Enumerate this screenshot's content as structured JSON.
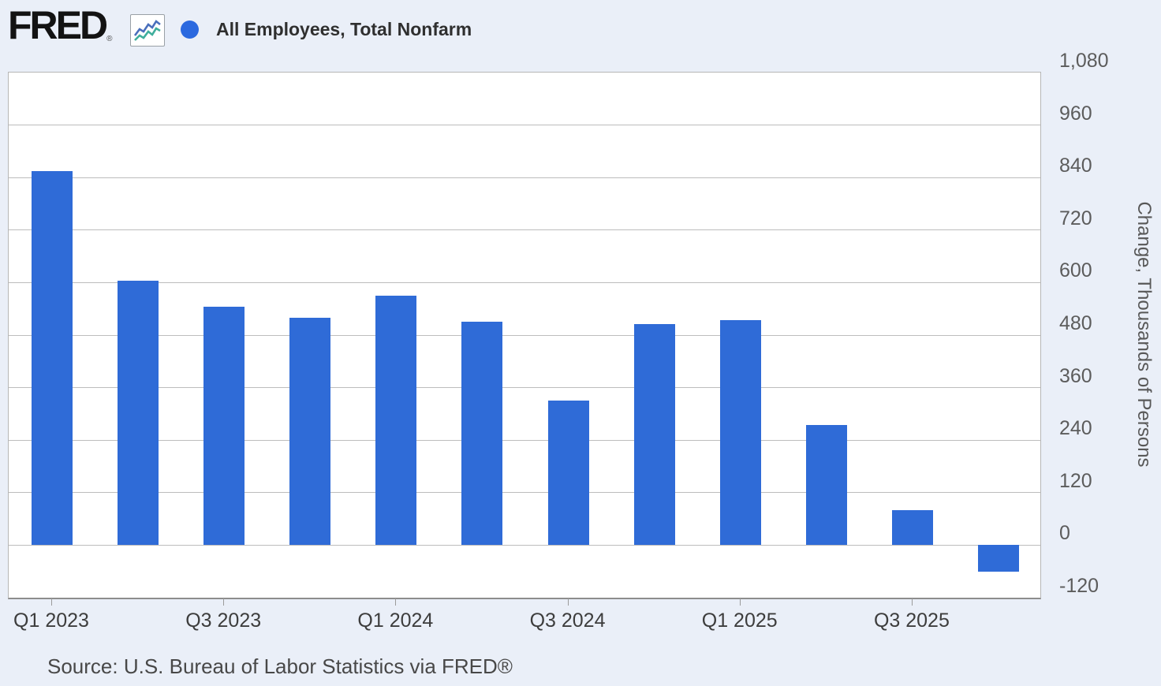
{
  "header": {
    "brand": "FRED",
    "brand_reg": "®",
    "legend_label": "All Employees, Total Nonfarm"
  },
  "chart_data": {
    "type": "bar",
    "title": "All Employees, Total Nonfarm",
    "categories": [
      "Q1 2023",
      "Q2 2023",
      "Q3 2023",
      "Q4 2023",
      "Q1 2024",
      "Q2 2024",
      "Q3 2024",
      "Q4 2024",
      "Q1 2025",
      "Q2 2025",
      "Q3 2025",
      "Q4 2025"
    ],
    "values": [
      855,
      605,
      545,
      520,
      570,
      510,
      330,
      505,
      515,
      275,
      80,
      -60
    ],
    "xlabel": "",
    "ylabel": "Change, Thousands of Persons",
    "ylim": [
      -120,
      1080
    ],
    "ytick_interval": 120,
    "yticks": [
      1080,
      960,
      840,
      720,
      600,
      480,
      360,
      240,
      120,
      0,
      -120
    ],
    "ytick_labels": [
      "1,080",
      "960",
      "840",
      "720",
      "600",
      "480",
      "360",
      "240",
      "120",
      "0",
      "-120"
    ],
    "xtick_labels": [
      "Q1 2023",
      "Q3 2023",
      "Q1 2024",
      "Q3 2024",
      "Q1 2025",
      "Q3 2025"
    ],
    "grid": true,
    "legend_position": "top-left",
    "bar_color": "#2f6bd7"
  },
  "colors": {
    "background": "#eaeff8",
    "plot_background": "#ffffff",
    "gridline": "#bdbdbd",
    "bar": "#2f6bd7",
    "legend_dot": "#2b69df",
    "icon_line_blue": "#4a6fbc",
    "icon_line_teal": "#3fae9c"
  },
  "source": {
    "text": "Source: U.S. Bureau of Labor Statistics via FRED®"
  }
}
